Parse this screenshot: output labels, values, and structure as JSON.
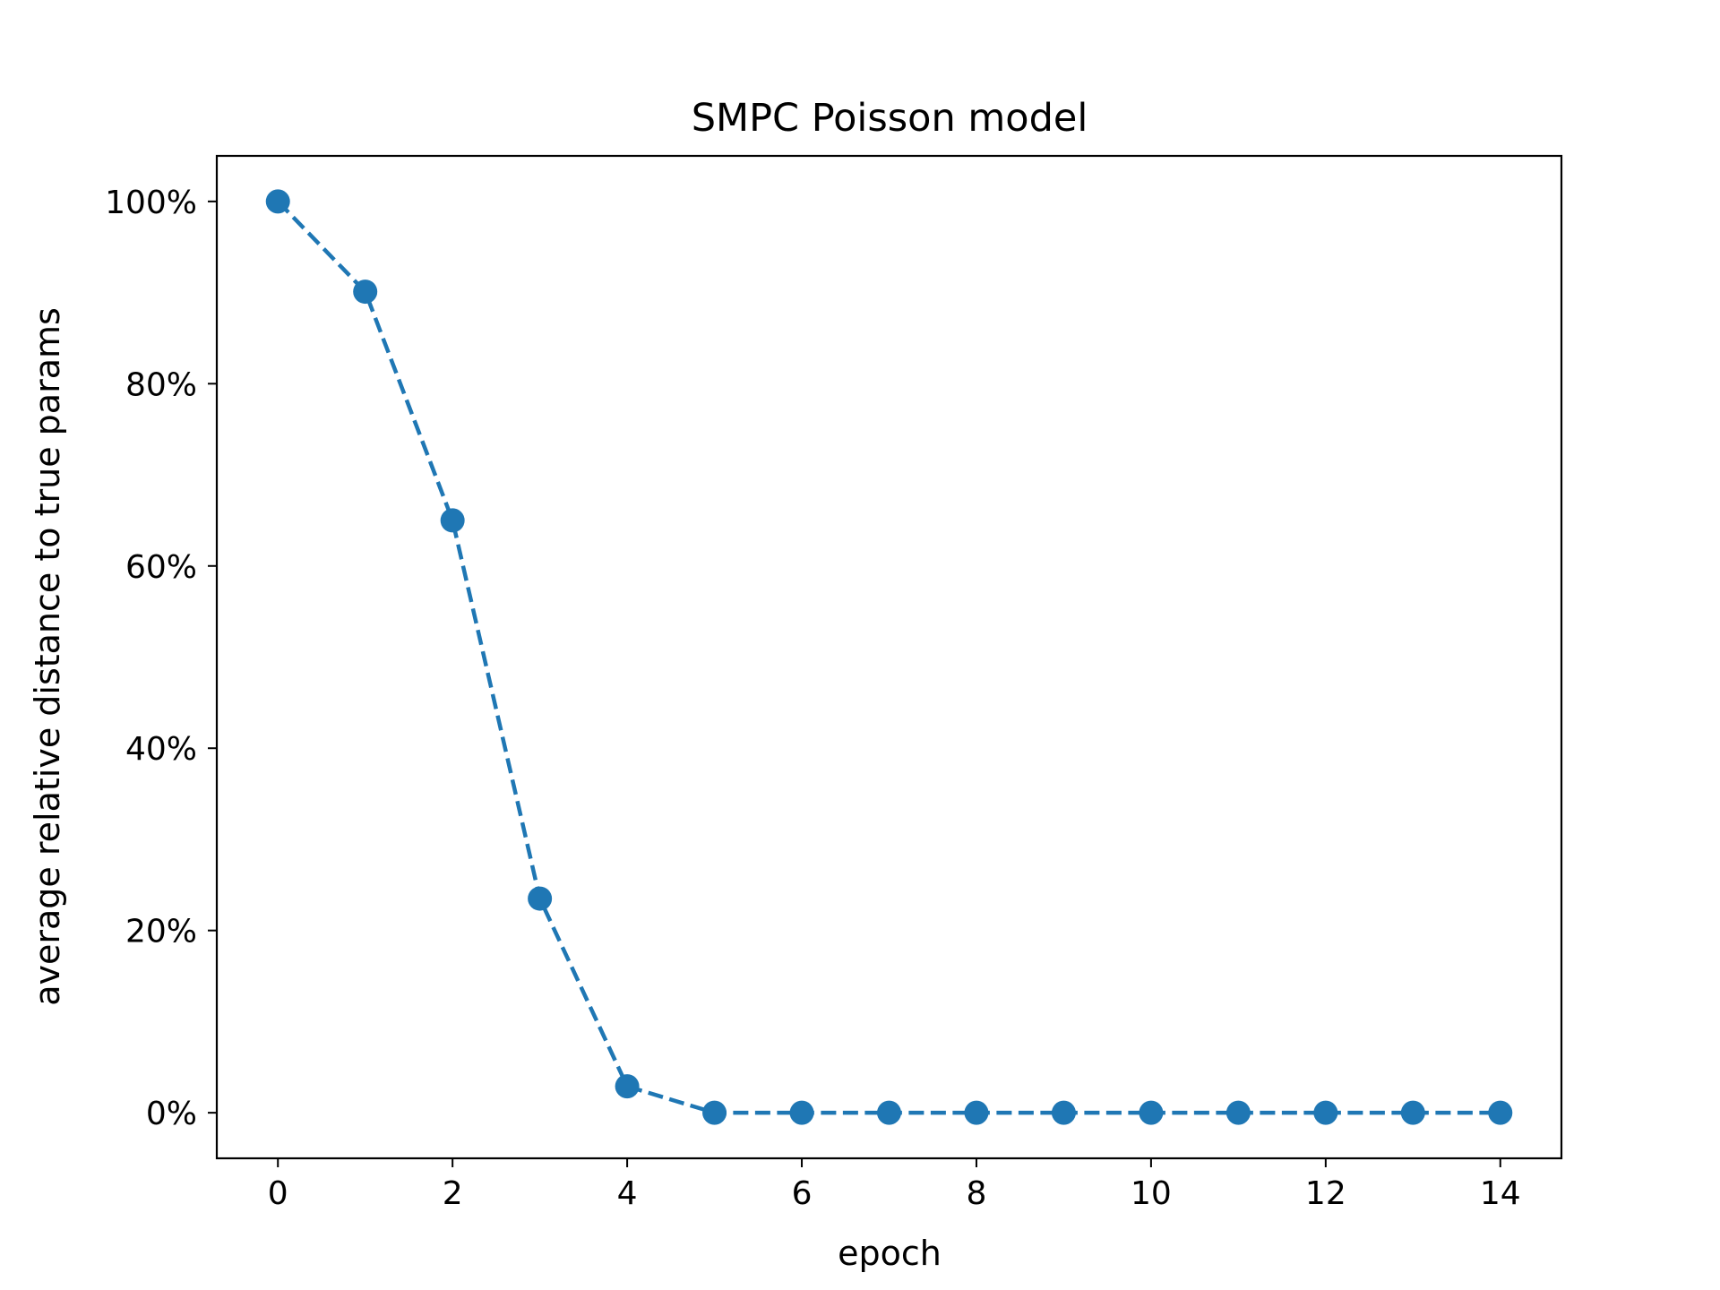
{
  "chart_data": {
    "type": "line",
    "title": "SMPC Poisson model",
    "xlabel": "epoch",
    "ylabel": "average relative distance to true params",
    "xlim": [
      -0.7,
      14.7
    ],
    "ylim": [
      -0.05,
      1.05
    ],
    "x_ticks": [
      0,
      2,
      4,
      6,
      8,
      10,
      12,
      14
    ],
    "x_tick_labels": [
      "0",
      "2",
      "4",
      "6",
      "8",
      "10",
      "12",
      "14"
    ],
    "y_ticks": [
      0,
      0.2,
      0.4,
      0.6,
      0.8,
      1.0
    ],
    "y_tick_labels": [
      "0%",
      "20%",
      "40%",
      "60%",
      "80%",
      "100%"
    ],
    "grid": false,
    "legend": "none",
    "line_style": "dashed",
    "marker": "circle",
    "series": [
      {
        "color": "#1f77b4",
        "x": [
          0,
          1,
          2,
          3,
          4,
          5,
          6,
          7,
          8,
          9,
          10,
          11,
          12,
          13,
          14
        ],
        "y": [
          1.0,
          0.901,
          0.65,
          0.235,
          0.029,
          0.0,
          0.0,
          0.0,
          0.0,
          0.0,
          0.0,
          0.0,
          0.0,
          0.0,
          0.0
        ]
      }
    ]
  }
}
